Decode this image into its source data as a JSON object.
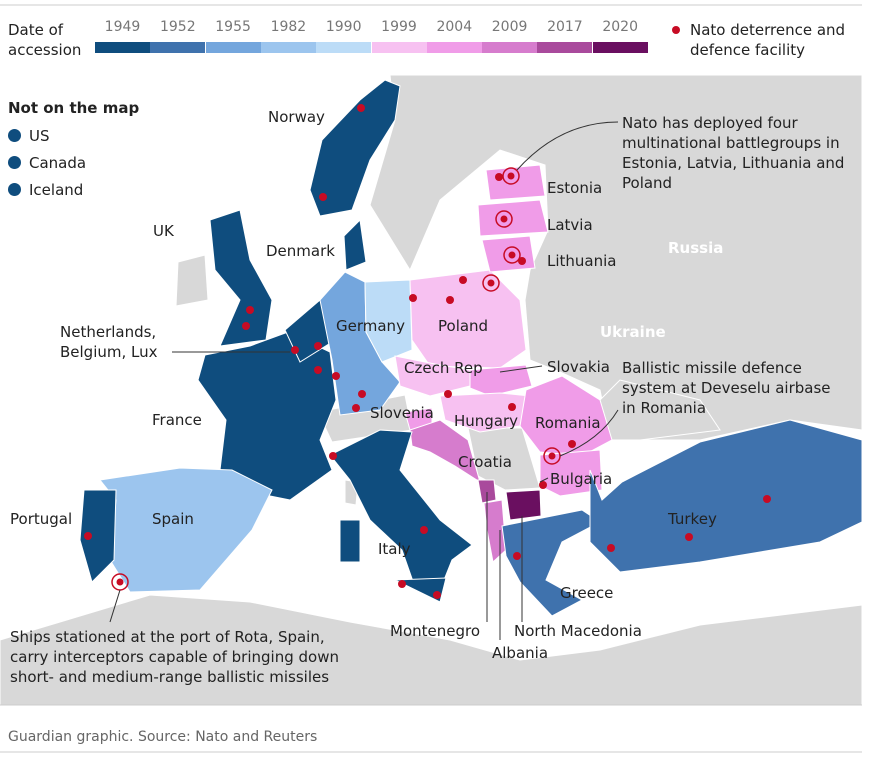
{
  "legend": {
    "title": "Date of accession",
    "years": [
      {
        "label": "1949",
        "color": "#0f4d7e"
      },
      {
        "label": "1952",
        "color": "#3f72ad"
      },
      {
        "label": "1955",
        "color": "#74a6dd"
      },
      {
        "label": "1982",
        "color": "#9cc5ee"
      },
      {
        "label": "1990",
        "color": "#bcdcf7"
      },
      {
        "label": "1999",
        "color": "#f7c1f1"
      },
      {
        "label": "2004",
        "color": "#f09ce8"
      },
      {
        "label": "2009",
        "color": "#d67ccd"
      },
      {
        "label": "2017",
        "color": "#a94a9c"
      },
      {
        "label": "2020",
        "color": "#6a0f60"
      }
    ],
    "facility": "Nato deterrence and defence facility"
  },
  "not_on_map": {
    "title": "Not on the map",
    "items": [
      "US",
      "Canada",
      "Iceland"
    ]
  },
  "labels": {
    "norway": "Norway",
    "uk": "UK",
    "denmark": "Denmark",
    "benelux": "Netherlands, Belgium, Lux",
    "germany": "Germany",
    "poland": "Poland",
    "estonia": "Estonia",
    "latvia": "Latvia",
    "lithuania": "Lithuania",
    "russia": "Russia",
    "ukraine": "Ukraine",
    "czech": "Czech Rep",
    "slovakia": "Slovakia",
    "france": "France",
    "slovenia": "Slovenia",
    "hungary": "Hungary",
    "romania": "Romania",
    "croatia": "Croatia",
    "bulgaria": "Bulgaria",
    "portugal": "Portugal",
    "spain": "Spain",
    "turkey": "Turkey",
    "italy": "Italy",
    "greece": "Greece",
    "montenegro": "Montenegro",
    "north_macedonia": "North Macedonia",
    "albania": "Albania"
  },
  "annotations": {
    "battlegroups": "Nato has deployed four multinational battlegroups in Estonia, Latvia, Lithuania and Poland",
    "deveselu": "Ballistic missile defence system at Deveselu airbase in Romania",
    "rota": "Ships stationed at the port of Rota, Spain, carry interceptors capable of bringing down short- and medium-range ballistic missiles"
  },
  "source": "Guardian graphic. Source: Nato and Reuters"
}
